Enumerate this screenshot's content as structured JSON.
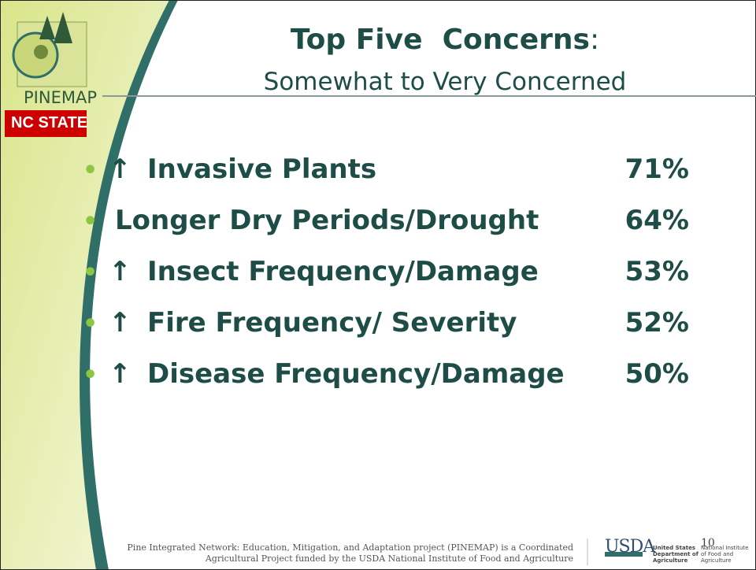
{
  "logo": {
    "name": "PINEMAP",
    "university": "NC STATE"
  },
  "header": {
    "title": "Top Five  Concerns",
    "title_suffix": ":",
    "subtitle": "Somewhat to Very Concerned"
  },
  "items": [
    {
      "arrow": "↑",
      "label": "Invasive Plants",
      "percent": "71%"
    },
    {
      "label": "Longer Dry Periods/Drought",
      "percent": "64%"
    },
    {
      "arrow": "↑",
      "label": "Insect Frequency/Damage",
      "percent": "53%"
    },
    {
      "arrow": "↑",
      "label": "Fire Frequency/ Severity",
      "percent": "52%"
    },
    {
      "arrow": "↑",
      "label": "Disease Frequency/Damage",
      "percent": "50%"
    }
  ],
  "footer": {
    "line1": "Pine Integrated Network: Education, Mitigation, and Adaptation project (PINEMAP) is a Coordinated",
    "line2": "Agricultural Project funded by the USDA National Institute of Food and Agriculture",
    "usda": "USDA",
    "usda_dept": [
      "United States",
      "Department of",
      "Agriculture"
    ],
    "nifa": [
      "National Institute",
      "of Food and",
      "Agriculture"
    ],
    "page": "10"
  }
}
